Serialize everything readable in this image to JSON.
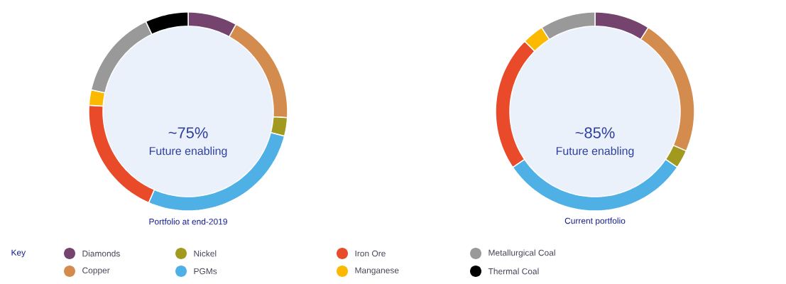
{
  "chart_data": [
    {
      "type": "donut",
      "title": "Portfolio at end-2019",
      "annotations": [
        "~75%",
        "Future enabling"
      ],
      "legend_title": "Key",
      "legend": "bottom",
      "categories": [
        "Diamonds",
        "Copper",
        "Nickel",
        "PGMs",
        "Iron Ore",
        "Manganese",
        "Metallurgical Coal",
        "Thermal Coal"
      ],
      "values": [
        8,
        18,
        3,
        27.5,
        19.5,
        2.5,
        14.5,
        7
      ],
      "colors": [
        "#74446e",
        "#d48c4e",
        "#a29a1f",
        "#4fb0e6",
        "#e84a2a",
        "#fbb900",
        "#999999",
        "#000000"
      ]
    },
    {
      "type": "donut",
      "title": "Current portfolio",
      "annotations": [
        "~85%",
        "Future enabling"
      ],
      "categories": [
        null,
        null,
        null,
        null,
        null,
        null,
        null
      ],
      "values": [
        9,
        22.5,
        3,
        31,
        22,
        3.5,
        9
      ],
      "colors": [
        "#74446e",
        "#d48c4e",
        "#a29a1f",
        "#4fb0e6",
        "#e84a2a",
        "#fbb900",
        "#999999"
      ]
    }
  ]
}
